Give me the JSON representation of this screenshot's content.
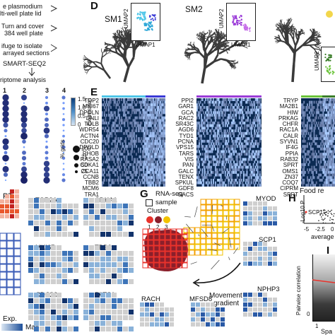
{
  "panels": {
    "d": "D",
    "e": "E",
    "g": "G",
    "h": "H",
    "i": "I"
  },
  "protocol": {
    "lines": [
      "e plasmodium",
      "lti-well plate lid",
      "Turn and cover",
      "384 well plate",
      "ifuge to isolate",
      "arrayed sections"
    ],
    "step": "SMART-SEQ2",
    "step2": "riptome analysis"
  },
  "dotplot": {
    "col_labels": [
      "1",
      "2",
      "3",
      "4"
    ],
    "legend_expression_title": "Expression",
    "legend_expression_ticks": [
      "1.5",
      "1.0",
      "0.5",
      "0"
    ],
    "legend_grid_title": "% grids",
    "legend_grid_ticks": [
      "100",
      "75",
      "50",
      "25"
    ]
  },
  "umap_panels": [
    {
      "title": "SM1",
      "xlabel": "UMAP1",
      "ylabel": "UMAP2"
    },
    {
      "title": "SM2",
      "xlabel": "UMAP1",
      "ylabel": "UMAP2"
    },
    {
      "title": "",
      "xlabel": "",
      "ylabel": "UMAP2"
    }
  ],
  "gene_lists": {
    "sm1": [
      "TOP2",
      "MKI67",
      "DPOLN",
      "DNLI",
      "TOLB",
      "WDR54",
      "ACTN4",
      "CDC20",
      "DPOLD",
      "RHOB",
      "RASA2",
      "CDKA1",
      "CCA11",
      "CCNB",
      "TBB2",
      "MCM6",
      "TRA1"
    ],
    "sm2": [
      "PPI2",
      "GAR1",
      "GCA",
      "RAC2",
      "SR43C",
      "AGD6",
      "TYD1",
      "PCNA",
      "VPS15",
      "TARS",
      "VIS",
      "PAN",
      "GALC",
      "TENX",
      "SPKUL",
      "GDF8",
      "GACS"
    ],
    "sm3": [
      "TRYP",
      "MA2B1",
      "HIW",
      "PRKAG",
      "CHFR",
      "RAC1A",
      "CALR",
      "SYVN1",
      "IF4G",
      "PPIA",
      "RAB32",
      "SPRT",
      "OMS1",
      "ZN37",
      "COQ7",
      "CIPRM",
      "SPRT"
    ]
  },
  "spatial": {
    "pt_label": "PT",
    "exp_label": "Exp.",
    "max_label": "Max",
    "genes": [
      "TOP2A",
      "CDKA1",
      "MKI67",
      "TBB2",
      "CDC20",
      "PATS1"
    ]
  },
  "panel_g": {
    "legend_rnaseq": "RNA-seq",
    "legend_sample": "sample",
    "legend_cluster": "Cluster",
    "cluster_ticks": [
      "1",
      "2",
      "3"
    ],
    "arrow_label_1": "Movement",
    "arrow_label_2": "gradient",
    "right_genes": [
      "MYOD",
      "SCP1",
      "NPHP3"
    ],
    "bottom_genes": [
      "RACH",
      "MFSD8"
    ],
    "colors": {
      "c1": "#e9322b",
      "c2": "#8b1f2b",
      "c3": "#f2c200",
      "c4": "#f3a000"
    }
  },
  "panel_h": {
    "title": "Food re",
    "ylabel": "-Log10 P",
    "point_label": "SCP1",
    "xticks": [
      "-5",
      "-2.5",
      "0"
    ],
    "xlabel": "average"
  },
  "panel_i": {
    "ylabel": "Pairwise correlation",
    "ytick": "0",
    "xticks": [
      "1"
    ],
    "xlabel": "Spa"
  },
  "heatmap_colors": {
    "sm1_bar": "#4fc6e8",
    "sm1_bar2": "#3a3ad6",
    "sm2_bar": "#9b3cd8",
    "sm3_bar": "#6bc43a",
    "sm3_bar2": "#3a7d2a"
  }
}
